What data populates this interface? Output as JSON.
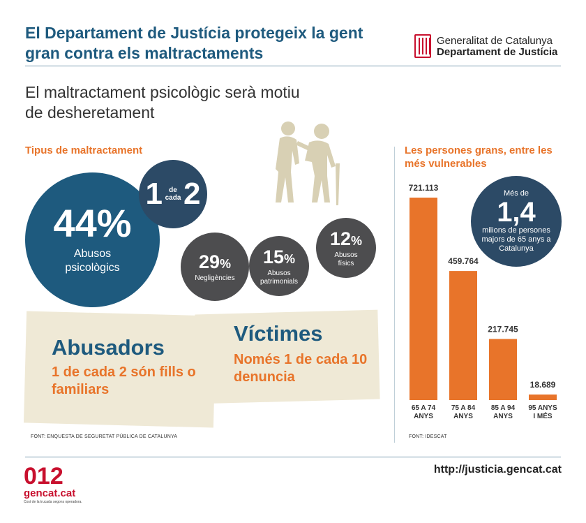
{
  "header": {
    "title": "El Departament de Justícia protegeix la gent gran contra els maltractaments",
    "logo_line1": "Generalitat de Catalunya",
    "logo_line2": "Departament de Justícia"
  },
  "subtitle": "El maltractament psicològic serà motiu de desheretament",
  "types": {
    "heading": "Tipus de maltractament",
    "main": {
      "value": "44%",
      "label": "Abusos psicològics"
    },
    "ratio": {
      "left": "1",
      "mid": "de cada",
      "right": "2"
    },
    "neglect": {
      "value": "29",
      "unit": "%",
      "label": "Negligències"
    },
    "patrimonial": {
      "value": "15",
      "unit": "%",
      "label": "Abusos patrimonials"
    },
    "physical": {
      "value": "12",
      "unit": "%",
      "label": "Abusos físics"
    }
  },
  "abusers": {
    "heading": "Abusadors",
    "text": "1 de cada 2 són fills o familiars"
  },
  "victims": {
    "heading": "Víctimes",
    "text": "Només 1 de cada 10 denuncia"
  },
  "source_left": "FONT: ENQUESTA DE SEGURETAT PÚBLICA DE CATALUNYA",
  "persons": {
    "heading": "Les persones grans, entre les més vulnerables",
    "bubble_pre": "Més de",
    "bubble_value": "1,4",
    "bubble_post": "milions de persones majors de 65 anys a Catalunya"
  },
  "source_right": "FONT: IDESCAT",
  "chart_data": {
    "type": "bar",
    "title": "Les persones grans, entre les més vulnerables",
    "categories": [
      "65 A 74 ANYS",
      "75 A 84 ANYS",
      "85 A 94 ANYS",
      "95 ANYS I MÉS"
    ],
    "values": [
      721113,
      459764,
      217745,
      18689
    ],
    "value_labels": [
      "721.113",
      "459.764",
      "217.745",
      "18.689"
    ],
    "ylim": [
      0,
      721113
    ],
    "bar_color": "#e8742a",
    "grid": false
  },
  "footer": {
    "brand_number": "012",
    "brand_name": "gencat.cat",
    "brand_note": "Cost de la trucada segons operadora.",
    "url": "http://justicia.gencat.cat"
  },
  "colors": {
    "accent_blue": "#1e5a7e",
    "dark_blue": "#2c4a66",
    "orange": "#e8742a",
    "grey": "#4d4d4f",
    "beige": "#efe9d6",
    "red": "#c8102e"
  }
}
